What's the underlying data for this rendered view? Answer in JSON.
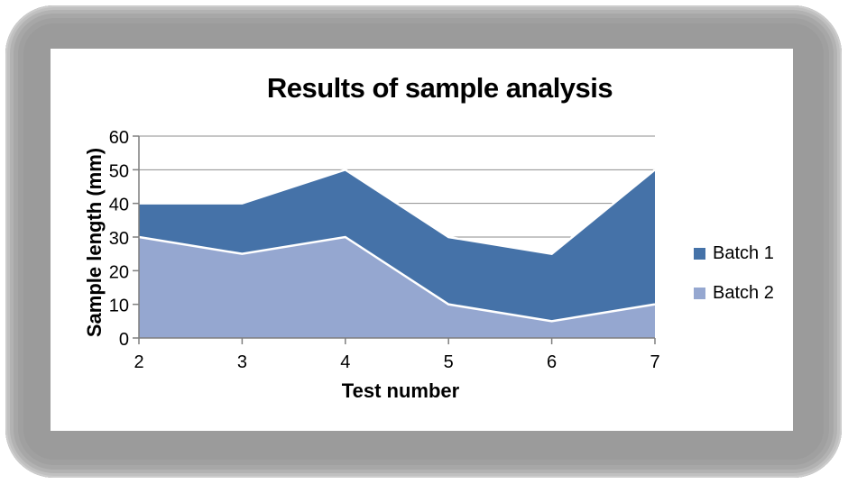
{
  "chart_data": {
    "type": "area",
    "title": "Results of sample analysis",
    "xlabel": "Test number",
    "ylabel": "Sample length (mm)",
    "x": [
      2,
      3,
      4,
      5,
      6,
      7
    ],
    "series": [
      {
        "name": "Batch 1",
        "color": "#4572A8",
        "values": [
          40,
          40,
          50,
          30,
          25,
          50
        ]
      },
      {
        "name": "Batch 2",
        "color": "#95A7D0",
        "values": [
          30,
          25,
          30,
          10,
          5,
          10
        ]
      }
    ],
    "series_note": "values are the visible upper boundary of each area; Batch 2 (light) is drawn in front of Batch 1 (dark); white outline separates the areas",
    "ylim": [
      0,
      60
    ],
    "ytick_step": 10,
    "xlim": [
      2,
      7
    ],
    "grid": true,
    "legend_position": "right",
    "colors": {
      "series_outline": "#FFFFFF",
      "gridline": "#8E8E8E",
      "axis": "#7F7F7F",
      "text": "#000000",
      "canvas": "#FFFFFF",
      "frame": "#9B9B9B"
    }
  }
}
